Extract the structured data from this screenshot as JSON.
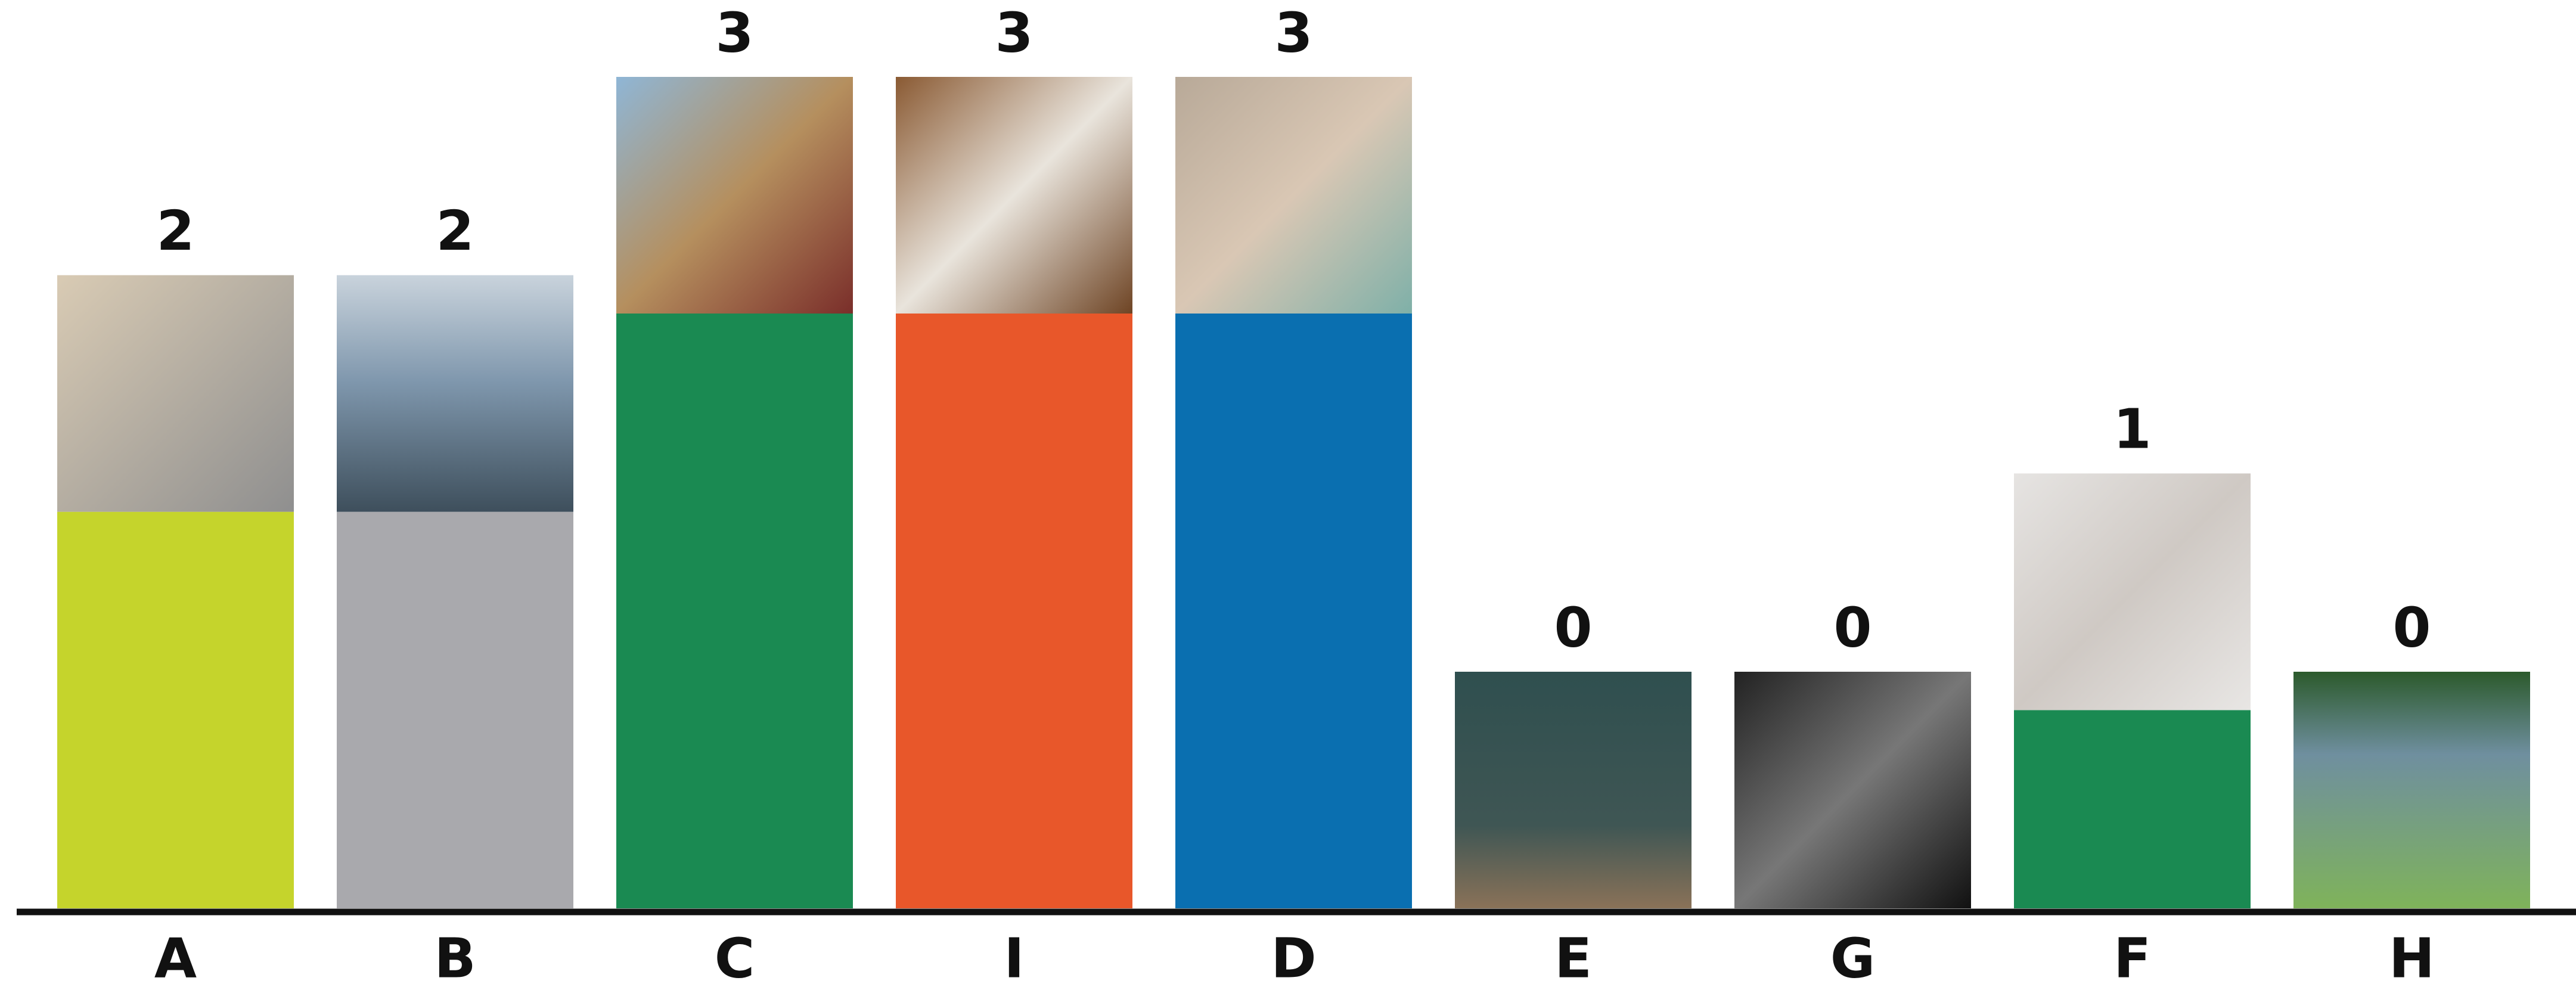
{
  "chart_data": {
    "type": "bar",
    "categories": [
      "A",
      "B",
      "C",
      "I",
      "D",
      "E",
      "G",
      "F",
      "H"
    ],
    "values": [
      2,
      2,
      3,
      3,
      3,
      0,
      0,
      1,
      0
    ],
    "colors": [
      "#c5d42c",
      "#a9a9ad",
      "#1a8a52",
      "#e8572a",
      "#0a6fb0",
      null,
      null,
      "#1a8a52",
      null
    ]
  }
}
